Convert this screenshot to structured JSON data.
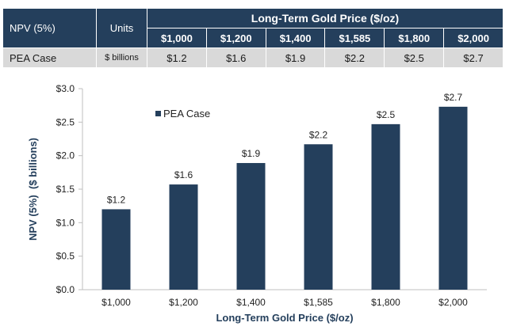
{
  "table": {
    "metric_header": "NPV (5%)",
    "units_header": "Units",
    "price_group_header": "Long-Term Gold Price ($/oz)",
    "price_headers": [
      "$1,000",
      "$1,200",
      "$1,400",
      "$1,585",
      "$1,800",
      "$2,000"
    ],
    "row": {
      "label": "PEA Case",
      "units": "$ billions",
      "values": [
        "$1.2",
        "$1.6",
        "$1.9",
        "$2.2",
        "$2.5",
        "$2.7"
      ]
    }
  },
  "colors": {
    "navy": "#243f5c",
    "row_gray": "#d9d9d9",
    "bar": "#243f5c"
  },
  "chart_data": {
    "type": "bar",
    "categories": [
      "$1,000",
      "$1,200",
      "$1,400",
      "$1,585",
      "$1,800",
      "$2,000"
    ],
    "series": [
      {
        "name": "PEA Case",
        "values": [
          1.2,
          1.57,
          1.89,
          2.17,
          2.47,
          2.73
        ]
      }
    ],
    "data_labels": [
      "$1.2",
      "$1.6",
      "$1.9",
      "$2.2",
      "$2.5",
      "$2.7"
    ],
    "xlabel": "Long-Term Gold Price ($/oz)",
    "ylabel": "NPV (5%)  ($ billions)",
    "ylim": [
      0,
      3.0
    ],
    "yticks": [
      0,
      0.5,
      1.0,
      1.5,
      2.0,
      2.5,
      3.0
    ],
    "ytick_labels": [
      "$0.0",
      "$0.5",
      "$1.0",
      "$1.5",
      "$2.0",
      "$2.5",
      "$3.0"
    ],
    "grid": false,
    "legend_position": "top-left"
  }
}
